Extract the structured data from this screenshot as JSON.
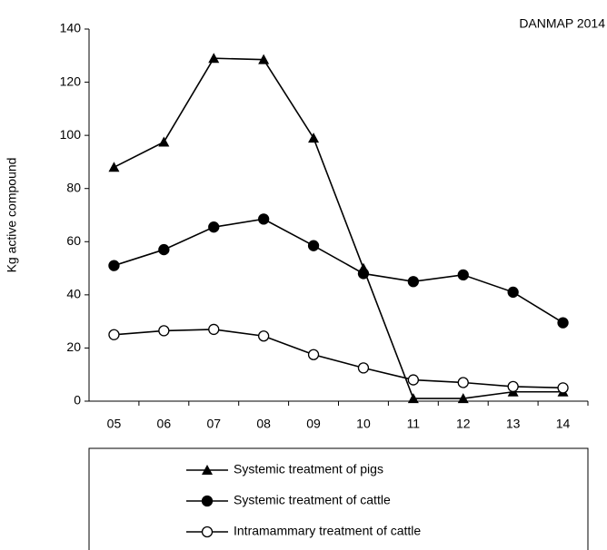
{
  "chart_data": {
    "type": "line",
    "source": "DANMAP 2014",
    "ylabel": "Kg active compound",
    "categories": [
      "05",
      "06",
      "07",
      "08",
      "09",
      "10",
      "11",
      "12",
      "13",
      "14"
    ],
    "series": [
      {
        "name": "Systemic treatment of pigs",
        "color": "#000000",
        "marker": "triangle",
        "values": [
          88,
          97.5,
          129,
          128.5,
          99,
          50,
          1,
          1,
          3.5,
          3.5
        ]
      },
      {
        "name": "Systemic treatment of cattle",
        "color": "#000000",
        "marker": "circle",
        "values": [
          51,
          57,
          65.5,
          68.5,
          58.5,
          48,
          45,
          47.5,
          41,
          29.5
        ]
      },
      {
        "name": "Intramammary treatment of cattle",
        "color": "#000000",
        "marker": "circle-open",
        "values": [
          25,
          26.5,
          27,
          24.5,
          17.5,
          12.5,
          8,
          7,
          5.5,
          5
        ]
      }
    ],
    "ylim": [
      0,
      140
    ],
    "yticks": [
      0,
      20,
      40,
      60,
      80,
      100,
      120,
      140
    ],
    "legend": "bottom"
  }
}
